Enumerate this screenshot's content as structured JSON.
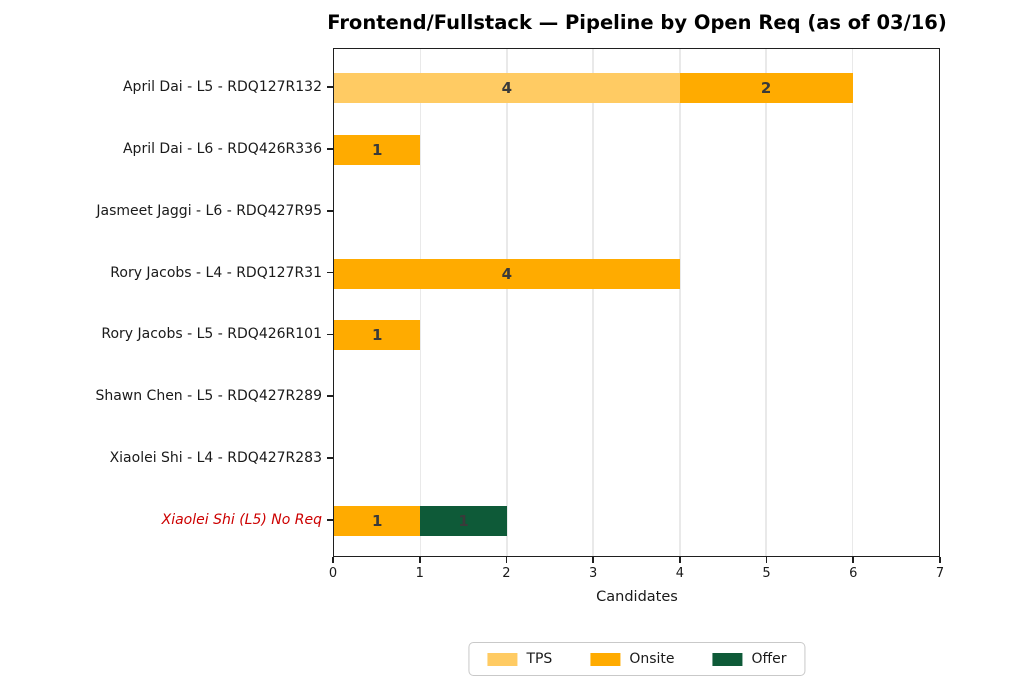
{
  "chart_data": {
    "type": "bar",
    "orientation": "horizontal",
    "stacked": true,
    "title": "Frontend/Fullstack — Pipeline by Open Req (as of 03/16)",
    "xlabel": "Candidates",
    "xlim": [
      0,
      7
    ],
    "xticks": [
      0,
      1,
      2,
      3,
      4,
      5,
      6,
      7
    ],
    "grid": "vertical-on",
    "legend_position": "bottom-center",
    "categories": [
      "April Dai - L5 - RDQ127R132",
      "April Dai - L6 - RDQ426R336",
      "Jasmeet Jaggi - L6 - RDQ427R95",
      "Rory Jacobs - L4 - RDQ127R31",
      "Rory Jacobs - L5 - RDQ426R101",
      "Shawn Chen - L5 - RDQ427R289",
      "Xiaolei Shi - L4 - RDQ427R283",
      "Xiaolei Shi (L5) No Req"
    ],
    "series": [
      {
        "name": "TPS",
        "color": "#FFCB63",
        "values": [
          4,
          0,
          0,
          0,
          0,
          0,
          0,
          0
        ]
      },
      {
        "name": "Onsite",
        "color": "#FFAB00",
        "values": [
          2,
          1,
          0,
          4,
          1,
          0,
          0,
          1
        ]
      },
      {
        "name": "Offer",
        "color": "#0E5A38",
        "values": [
          0,
          0,
          0,
          0,
          0,
          0,
          0,
          1
        ]
      }
    ],
    "totals": [
      6,
      1,
      0,
      4,
      1,
      0,
      0,
      2
    ],
    "segment_labels_shown": true,
    "highlight": {
      "category_index": 7,
      "text_color": "#CC0000",
      "style": "italic"
    }
  },
  "colors": {
    "background": "#FFFFFF",
    "value_label": "#3A3A3A",
    "axis_text": "#1A1A1A",
    "gridline": "#E9E9E9",
    "spine": "#1F1F1F",
    "legend_border": "#C9C9C9"
  }
}
